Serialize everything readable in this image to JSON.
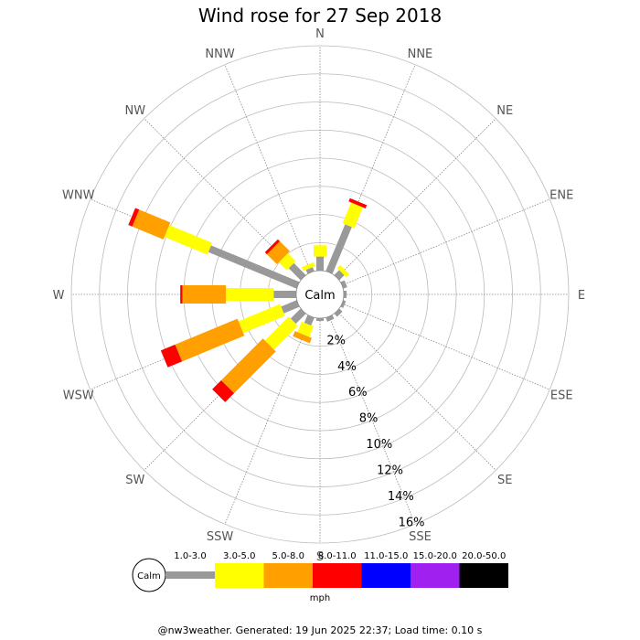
{
  "title": "Wind rose for 27 Sep 2018",
  "footer": "@nw3weather. Generated: 19 Jun 2025 22:37; Load time: 0.10 s",
  "chart_data": {
    "type": "windrose",
    "calm_label": "Calm",
    "units": "mph",
    "rmax": 16,
    "ring_values": [
      2,
      4,
      6,
      8,
      10,
      12,
      14,
      16
    ],
    "ring_labels": [
      "2%",
      "4%",
      "6%",
      "8%",
      "10%",
      "12%",
      "14%",
      "16%"
    ],
    "directions": [
      "N",
      "NNE",
      "NE",
      "ENE",
      "E",
      "ESE",
      "SE",
      "SSE",
      "S",
      "SSW",
      "SW",
      "WSW",
      "W",
      "WNW",
      "NW",
      "NNW"
    ],
    "speed_bins": [
      "1.0-3.0",
      "3.0-5.0",
      "5.0-8.0",
      "8.0-11.0",
      "11.0-15.0",
      "15.0-20.0",
      "20.0-50.0"
    ],
    "speed_colors": [
      "#999999",
      "#ffff00",
      "#ff9f00",
      "#ff0000",
      "#0000ff",
      "#a020f0",
      "#000000"
    ],
    "grid": true,
    "series": [
      {
        "name": "1.0-3.0",
        "values": [
          1.0,
          3.6,
          0.5,
          0.3,
          0.2,
          0.2,
          0.3,
          0.3,
          0.2,
          0.6,
          1.0,
          1.2,
          1.6,
          6.8,
          1.2,
          0.3
        ]
      },
      {
        "name": "3.0-5.0",
        "values": [
          0.8,
          1.6,
          0.3,
          0.0,
          0.0,
          0.0,
          0.0,
          0.0,
          0.0,
          0.8,
          2.4,
          3.2,
          3.4,
          3.3,
          0.8,
          0.3
        ]
      },
      {
        "name": "5.0-8.0",
        "values": [
          0.0,
          0.0,
          0.0,
          0.0,
          0.0,
          0.0,
          0.0,
          0.0,
          0.0,
          0.4,
          4.2,
          4.8,
          3.1,
          2.4,
          1.0,
          0.0
        ]
      },
      {
        "name": "8.0-11.0",
        "values": [
          0.0,
          0.25,
          0.0,
          0.0,
          0.0,
          0.0,
          0.0,
          0.0,
          0.0,
          0.0,
          0.9,
          1.1,
          0.15,
          0.3,
          0.2,
          0.0
        ]
      },
      {
        "name": "11.0-15.0",
        "values": [
          0,
          0,
          0,
          0,
          0,
          0,
          0,
          0,
          0,
          0,
          0,
          0,
          0,
          0,
          0,
          0
        ]
      },
      {
        "name": "15.0-20.0",
        "values": [
          0,
          0,
          0,
          0,
          0,
          0,
          0,
          0,
          0,
          0,
          0,
          0,
          0,
          0,
          0,
          0
        ]
      },
      {
        "name": "20.0-50.0",
        "values": [
          0,
          0,
          0,
          0,
          0,
          0,
          0,
          0,
          0,
          0,
          0,
          0,
          0,
          0,
          0,
          0
        ]
      }
    ]
  }
}
